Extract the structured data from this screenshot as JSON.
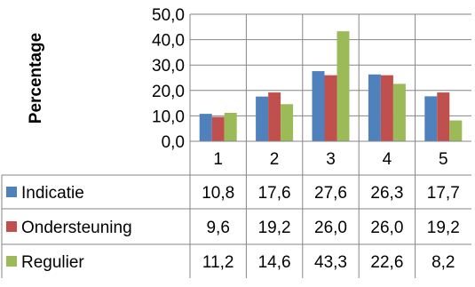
{
  "chart_data": {
    "type": "bar",
    "ylabel": "Percentage",
    "ylim": [
      0,
      50
    ],
    "yticks": [
      "0,0",
      "10,0",
      "20,0",
      "30,0",
      "40,0",
      "50,0"
    ],
    "categories": [
      "1",
      "2",
      "3",
      "4",
      "5"
    ],
    "grid": true,
    "legend": "data-table-left",
    "series": [
      {
        "name": "Indicatie",
        "color": "#4F81BD",
        "values": [
          10.8,
          17.6,
          27.6,
          26.3,
          17.7
        ],
        "labels": [
          "10,8",
          "17,6",
          "27,6",
          "26,3",
          "17,7"
        ]
      },
      {
        "name": "Ondersteuning",
        "color": "#C0504D",
        "values": [
          9.6,
          19.2,
          26.0,
          26.0,
          19.2
        ],
        "labels": [
          "9,6",
          "19,2",
          "26,0",
          "26,0",
          "19,2"
        ]
      },
      {
        "name": "Regulier",
        "color": "#9BBB59",
        "values": [
          11.2,
          14.6,
          43.3,
          22.6,
          8.2
        ],
        "labels": [
          "11,2",
          "14,6",
          "43,3",
          "22,6",
          "8,2"
        ]
      }
    ]
  }
}
